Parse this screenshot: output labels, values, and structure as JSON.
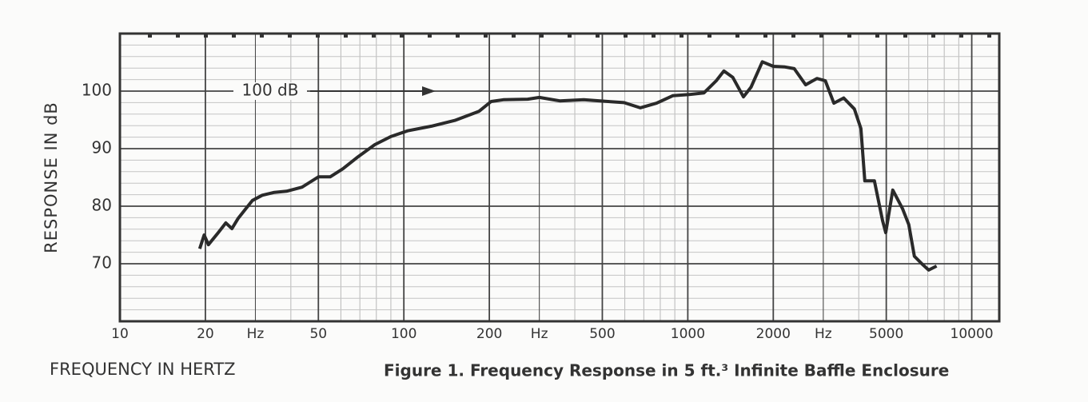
{
  "chart_data": {
    "type": "line",
    "title": "Figure 1.  Frequency Response in 5 ft.³ Infinite Baffle Enclosure",
    "x_label": "FREQUENCY IN HERTZ",
    "y_label": "RESPONSE IN dB",
    "annotation": "100 dB",
    "x_scale": "log",
    "grid": true,
    "color": "#2a2a2a",
    "xlim": [
      10,
      12500
    ],
    "ylim": [
      60,
      110
    ],
    "xticks": [
      10,
      20,
      {
        "value": 30,
        "label": "Hz"
      },
      50,
      100,
      200,
      {
        "value": 300,
        "label": "Hz"
      },
      500,
      1000,
      2000,
      {
        "value": 3000,
        "label": "Hz"
      },
      5000,
      10000
    ],
    "yticks": [
      70,
      80,
      90,
      100
    ],
    "x": [
      19.1,
      19.8,
      20.5,
      22.2,
      23.6,
      24.8,
      26.1,
      27.8,
      29.3,
      31.7,
      35,
      38.6,
      43.8,
      50,
      55,
      61,
      69,
      79,
      90,
      103,
      125,
      151,
      184,
      203,
      224,
      273,
      300,
      354,
      430,
      524,
      596,
      680,
      776,
      885,
      1010,
      1140,
      1260,
      1340,
      1440,
      1570,
      1670,
      1830,
      2000,
      2200,
      2370,
      2600,
      2850,
      3050,
      3270,
      3540,
      3860,
      4070,
      4200,
      4540,
      4850,
      4980,
      5270,
      5700,
      6000,
      6280,
      6700,
      7050,
      7520
    ],
    "values": [
      72.6,
      75,
      73.3,
      75.4,
      77.1,
      76.1,
      77.9,
      79.6,
      81,
      81.9,
      82.4,
      82.6,
      83.3,
      85.1,
      85.1,
      86.5,
      88.6,
      90.7,
      92.1,
      93.1,
      93.9,
      94.9,
      96.5,
      98.2,
      98.5,
      98.6,
      98.9,
      98.3,
      98.5,
      98.2,
      98,
      97.1,
      97.9,
      99.2,
      99.4,
      99.7,
      101.8,
      103.5,
      102.4,
      99,
      100.7,
      105.1,
      104.3,
      104.2,
      103.9,
      101.1,
      102.2,
      101.8,
      97.9,
      98.8,
      96.9,
      93.5,
      84.4,
      84.4,
      77.5,
      75.4,
      82.8,
      79.6,
      76.8,
      71.3,
      69.9,
      68.9,
      69.6
    ]
  }
}
